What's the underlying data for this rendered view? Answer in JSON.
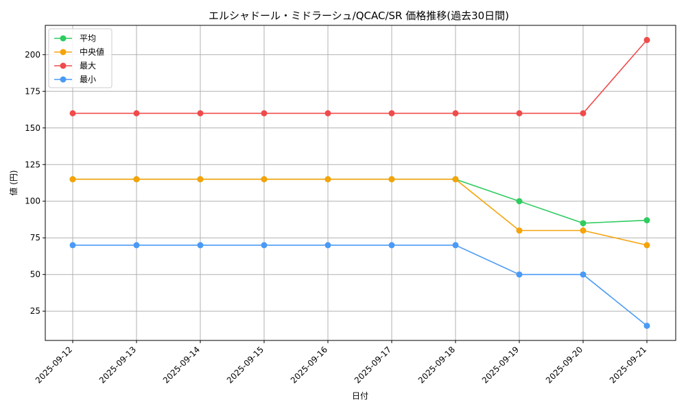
{
  "chart_data": {
    "type": "line",
    "title": "エルシャドール・ミドラーシュ/QCAC/SR 価格推移(過去30日間)",
    "xlabel": "日付",
    "ylabel": "値 (円)",
    "categories": [
      "2025-09-12",
      "2025-09-13",
      "2025-09-14",
      "2025-09-15",
      "2025-09-16",
      "2025-09-17",
      "2025-09-18",
      "2025-09-19",
      "2025-09-20",
      "2025-09-21"
    ],
    "ylim": [
      5,
      220
    ],
    "yticks": [
      25,
      50,
      75,
      100,
      125,
      150,
      175,
      200
    ],
    "grid": true,
    "legend_position": "top-left",
    "series": [
      {
        "name": "平均",
        "color": "#2ecc5f",
        "values": [
          115,
          115,
          115,
          115,
          115,
          115,
          115,
          100,
          85,
          87
        ]
      },
      {
        "name": "中央値",
        "color": "#f5a30a",
        "values": [
          115,
          115,
          115,
          115,
          115,
          115,
          115,
          80,
          80,
          70
        ]
      },
      {
        "name": "最大",
        "color": "#ef4b4b",
        "values": [
          160,
          160,
          160,
          160,
          160,
          160,
          160,
          160,
          160,
          210
        ]
      },
      {
        "name": "最小",
        "color": "#4a9af5",
        "values": [
          70,
          70,
          70,
          70,
          70,
          70,
          70,
          50,
          50,
          15
        ]
      }
    ]
  }
}
